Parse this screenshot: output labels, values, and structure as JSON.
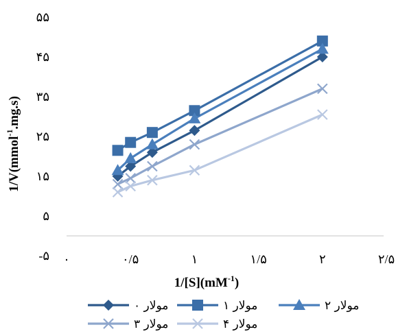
{
  "chart_data": {
    "type": "line",
    "xlabel": "1/[S](mM",
    "xlabel_sup": "-1",
    "xlabel_end": ")",
    "ylabel": "1/V(mmol",
    "ylabel_sup": "-1",
    "ylabel_end": ".mg.s)",
    "xlim": [
      0,
      2.5
    ],
    "ylim": [
      -5,
      55
    ],
    "x_ticks": [
      0,
      0.5,
      1,
      1.5,
      2,
      2.5
    ],
    "x_tick_labels": [
      "۰",
      "۰/۵",
      "۱",
      "۱/۵",
      "۲",
      "۲/۵"
    ],
    "y_ticks": [
      -5,
      5,
      15,
      25,
      35,
      45,
      55
    ],
    "y_tick_labels": [
      "-۵",
      "۵",
      "۱۵",
      "۲۵",
      "۳۵",
      "۴۵",
      "۵۵"
    ],
    "grid": false,
    "legend_position": "bottom",
    "series": [
      {
        "name": "۰ مولار",
        "color": "#2e5a8c",
        "marker": "diamond",
        "x": [
          0.4,
          0.5,
          0.67,
          1,
          2
        ],
        "y": [
          15,
          17.5,
          21,
          26.5,
          45
        ]
      },
      {
        "name": "۱ مولار",
        "color": "#3b6ea8",
        "marker": "square",
        "x": [
          0.4,
          0.5,
          0.67,
          1,
          2
        ],
        "y": [
          21.5,
          23.5,
          26,
          31.5,
          49
        ]
      },
      {
        "name": "۲ مولار",
        "color": "#4a7fbc",
        "marker": "triangle",
        "x": [
          0.4,
          0.5,
          0.67,
          1,
          2
        ],
        "y": [
          16.5,
          19.5,
          23,
          29.5,
          47
        ]
      },
      {
        "name": "۳ مولار",
        "color": "#8ea6cc",
        "marker": "x",
        "x": [
          0.4,
          0.5,
          0.67,
          1,
          2
        ],
        "y": [
          13,
          14.5,
          17.5,
          23,
          37
        ]
      },
      {
        "name": "۴ مولار",
        "color": "#b9c8e2",
        "marker": "x",
        "x": [
          0.4,
          0.5,
          0.67,
          1,
          2
        ],
        "y": [
          11,
          12.5,
          14,
          16.5,
          30.5
        ]
      }
    ]
  }
}
